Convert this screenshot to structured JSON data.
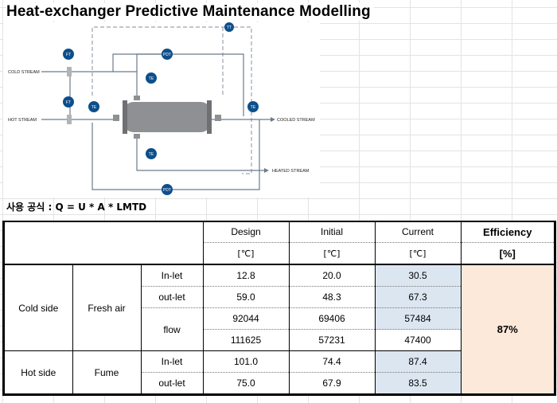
{
  "title": "Heat-exchanger Predictive Maintenance Modelling",
  "diagram": {
    "cold_stream": "COLD STREAM",
    "hot_stream": "HOT STREAM",
    "cooled_stream": "COOLED STREAM",
    "heated_stream": "HEATED STREAM",
    "ft": "FT",
    "te": "TE",
    "pdt": "PDT",
    "tt": "TT",
    "colors": {
      "instrument": "#0d4f8b",
      "line": "#6b7b8c",
      "vessel": "#8e9093"
    }
  },
  "formula": "사용 공식 : Q = U * A * LMTD",
  "table": {
    "headers": {
      "design": "Design",
      "initial": "Initial",
      "current": "Current",
      "efficiency": "Efficiency"
    },
    "units": {
      "design": "[℃]",
      "initial": "[℃]",
      "current": "[℃]",
      "efficiency": "[%]"
    },
    "cold_side": "Cold side",
    "fresh_air": "Fresh air",
    "hot_side": "Hot side",
    "fume": "Fume",
    "inlet": "In-let",
    "outlet": "out-let",
    "flow": "flow",
    "rows": [
      {
        "design": "12.8",
        "initial": "20.0",
        "current": "30.5"
      },
      {
        "design": "59.0",
        "initial": "48.3",
        "current": "67.3"
      },
      {
        "design": "92044",
        "initial": "69406",
        "current": "57484"
      },
      {
        "design": "111625",
        "initial": "57231",
        "current": "47400"
      },
      {
        "design": "101.0",
        "initial": "74.4",
        "current": "87.4"
      },
      {
        "design": "75.0",
        "initial": "67.9",
        "current": "83.5"
      }
    ],
    "efficiency_value": "87%"
  }
}
